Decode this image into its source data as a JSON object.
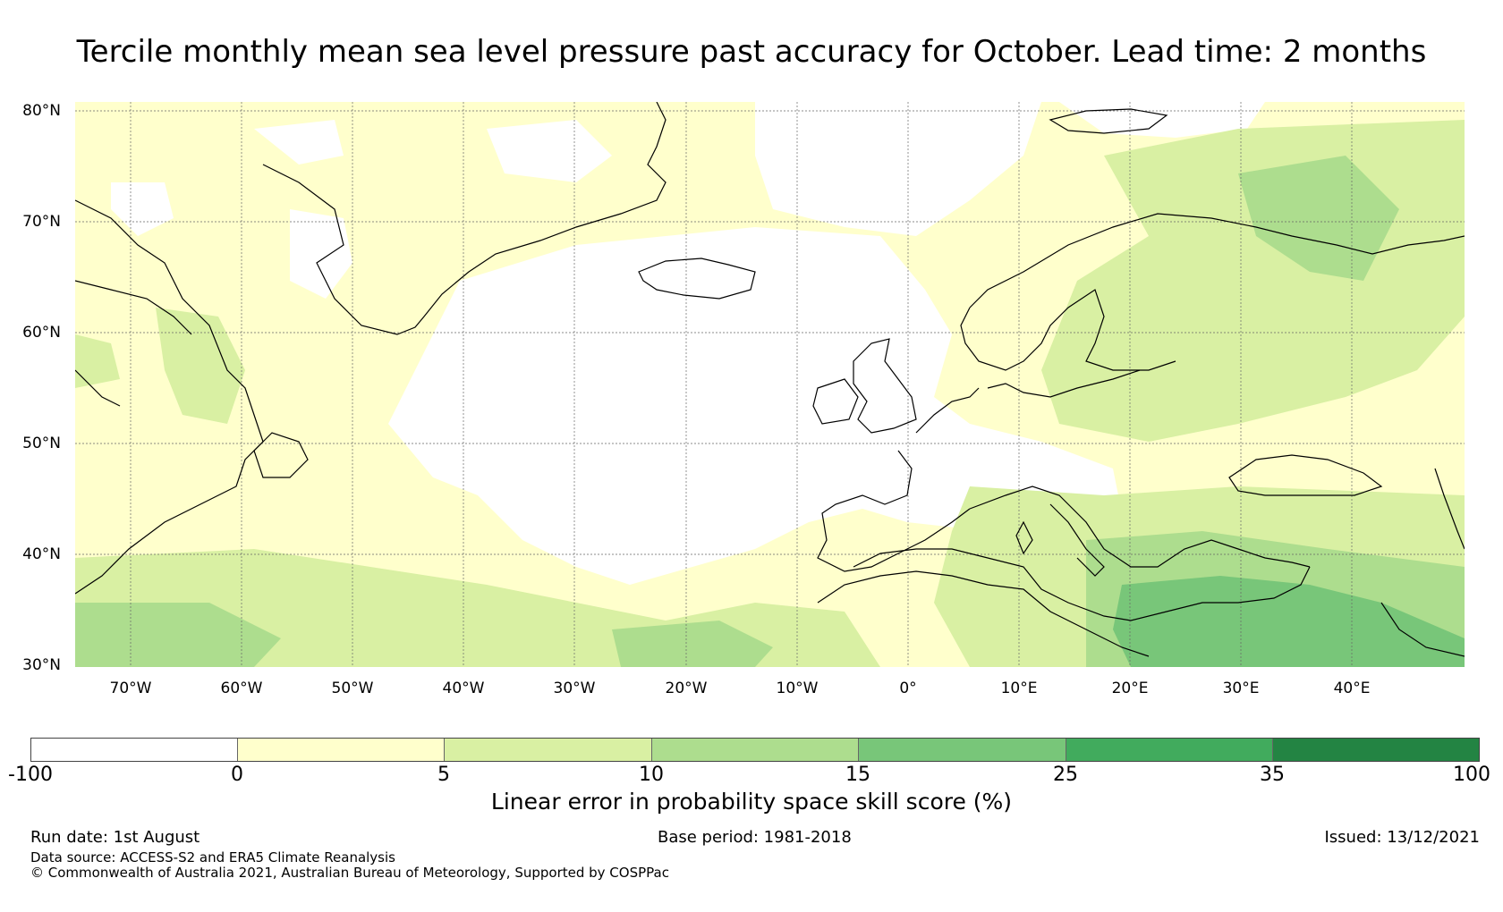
{
  "title": "Tercile monthly mean sea level pressure past accuracy for October. Lead time: 2 months",
  "map": {
    "region": "North Atlantic and Europe",
    "lat_labels": [
      "80°N",
      "70°N",
      "60°N",
      "50°N",
      "40°N",
      "30°N"
    ],
    "lon_labels": [
      "70°W",
      "60°W",
      "50°W",
      "40°W",
      "30°W",
      "20°W",
      "10°W",
      "0°",
      "10°E",
      "20°E",
      "30°E",
      "40°E"
    ],
    "gridlines": true,
    "coastline_color": "#000000"
  },
  "colorbar": {
    "label": "Linear error in probability space skill score (%)",
    "ticks": [
      "-100",
      "0",
      "5",
      "10",
      "15",
      "25",
      "35",
      "100"
    ],
    "colors": [
      "#ffffff",
      "#ffffcc",
      "#d9f0a3",
      "#addd8e",
      "#78c679",
      "#41ab5d",
      "#238443"
    ]
  },
  "footer": {
    "run_date": "Run date: 1st August",
    "base_period": "Base period: 1981-2018",
    "issued": "Issued: 13/12/2021",
    "data_source": "Data source: ACCESS-S2 and ERA5 Climate Reanalysis",
    "copyright": "© Commonwealth of Australia 2021, Australian Bureau of Meteorology, Supported by COSPPac"
  }
}
